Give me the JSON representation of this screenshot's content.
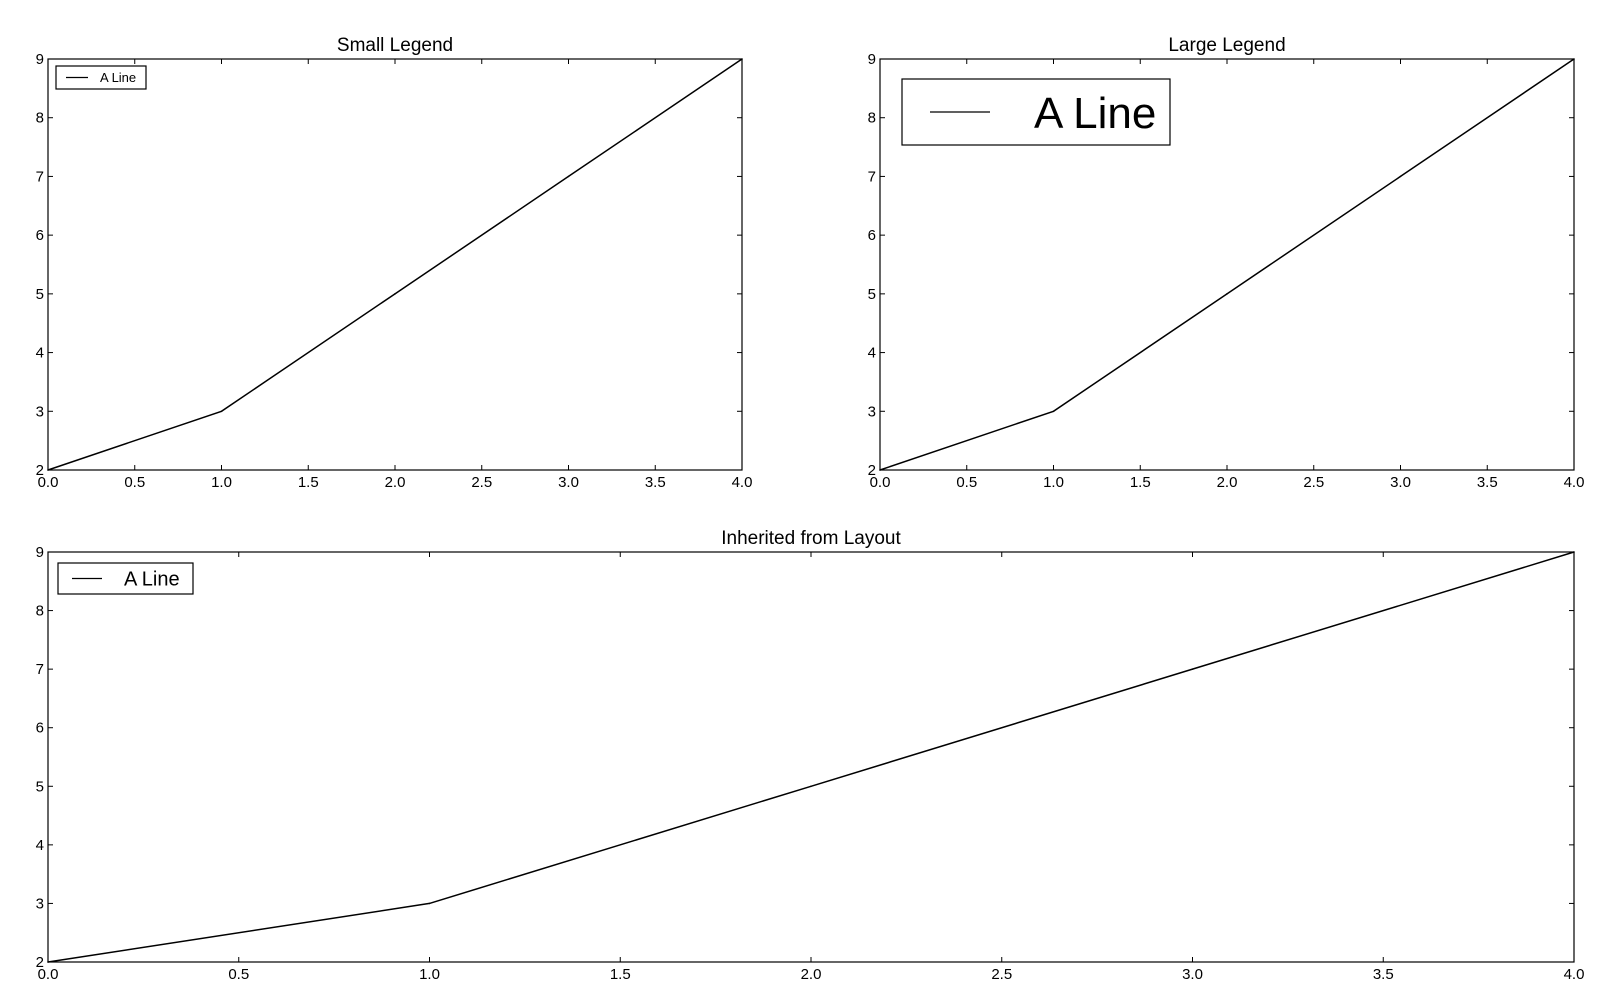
{
  "chart_data": [
    {
      "type": "line",
      "title": "Small Legend",
      "x": [
        0,
        1,
        2,
        3,
        4
      ],
      "series": [
        {
          "name": "A Line",
          "values": [
            2,
            3,
            5,
            7,
            9
          ],
          "color": "#000000"
        }
      ],
      "xlim": [
        0.0,
        4.0
      ],
      "ylim": [
        2,
        9
      ],
      "xticks": [
        "0.0",
        "0.5",
        "1.0",
        "1.5",
        "2.0",
        "2.5",
        "3.0",
        "3.5",
        "4.0"
      ],
      "yticks": [
        "2",
        "3",
        "4",
        "5",
        "6",
        "7",
        "8",
        "9"
      ],
      "legend": {
        "placement": "top-left",
        "size": "small"
      },
      "grid": false
    },
    {
      "type": "line",
      "title": "Large Legend",
      "x": [
        0,
        1,
        2,
        3,
        4
      ],
      "series": [
        {
          "name": "A Line",
          "values": [
            2,
            3,
            5,
            7,
            9
          ],
          "color": "#000000"
        }
      ],
      "xlim": [
        0.0,
        4.0
      ],
      "ylim": [
        2,
        9
      ],
      "xticks": [
        "0.0",
        "0.5",
        "1.0",
        "1.5",
        "2.0",
        "2.5",
        "3.0",
        "3.5",
        "4.0"
      ],
      "yticks": [
        "2",
        "3",
        "4",
        "5",
        "6",
        "7",
        "8",
        "9"
      ],
      "legend": {
        "placement": "top-left",
        "size": "large"
      },
      "grid": false
    },
    {
      "type": "line",
      "title": "Inherited from Layout",
      "x": [
        0,
        1,
        2,
        3,
        4
      ],
      "series": [
        {
          "name": "A Line",
          "values": [
            2,
            3,
            5,
            7,
            9
          ],
          "color": "#000000"
        }
      ],
      "xlim": [
        0.0,
        4.0
      ],
      "ylim": [
        2,
        9
      ],
      "xticks": [
        "0.0",
        "0.5",
        "1.0",
        "1.5",
        "2.0",
        "2.5",
        "3.0",
        "3.5",
        "4.0"
      ],
      "yticks": [
        "2",
        "3",
        "4",
        "5",
        "6",
        "7",
        "8",
        "9"
      ],
      "legend": {
        "placement": "top-left",
        "size": "medium"
      },
      "grid": false
    }
  ]
}
